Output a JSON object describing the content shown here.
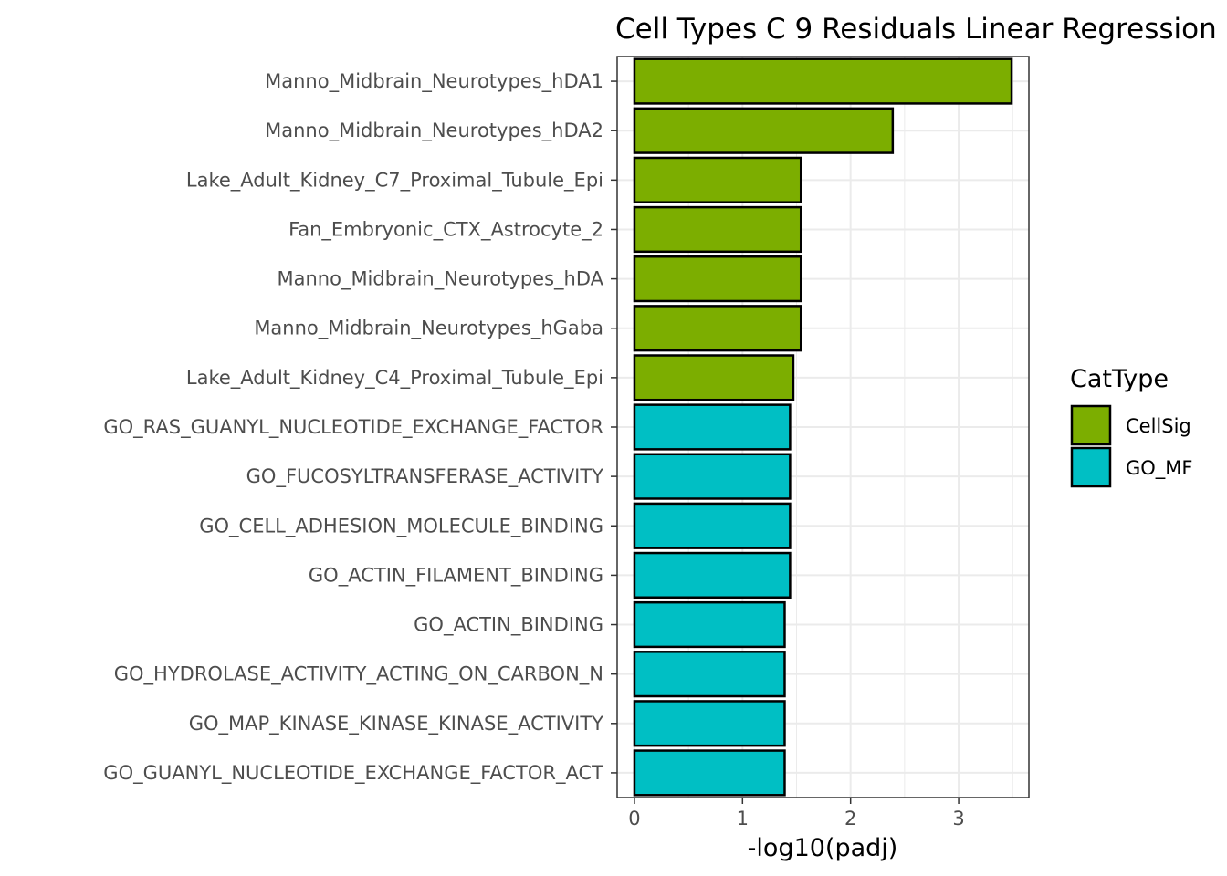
{
  "chart_data": {
    "type": "bar",
    "orientation": "horizontal",
    "title": "Cell Types C 9 Residuals Linear Regression",
    "xlabel": "-log10(padj)",
    "ylabel": "",
    "xlim": [
      -0.16,
      3.65
    ],
    "xticks": [
      "0",
      "1",
      "2",
      "3"
    ],
    "grid": true,
    "legend": {
      "title": "CatType",
      "placement": "right",
      "entries": [
        {
          "name": "CellSig",
          "color": "#7CAE00"
        },
        {
          "name": "GO_MF",
          "color": "#00BFC4"
        }
      ]
    },
    "categories": [
      "Manno_Midbrain_Neurotypes_hDA1",
      "Manno_Midbrain_Neurotypes_hDA2",
      "Lake_Adult_Kidney_C7_Proximal_Tubule_Epi",
      "Fan_Embryonic_CTX_Astrocyte_2",
      "Manno_Midbrain_Neurotypes_hDA",
      "Manno_Midbrain_Neurotypes_hGaba",
      "Lake_Adult_Kidney_C4_Proximal_Tubule_Epi",
      "GO_RAS_GUANYL_NUCLEOTIDE_EXCHANGE_FACTOR",
      "GO_FUCOSYLTRANSFERASE_ACTIVITY",
      "GO_CELL_ADHESION_MOLECULE_BINDING",
      "GO_ACTIN_FILAMENT_BINDING",
      "GO_ACTIN_BINDING",
      "GO_HYDROLASE_ACTIVITY_ACTING_ON_CARBON_N",
      "GO_MAP_KINASE_KINASE_KINASE_ACTIVITY",
      "GO_GUANYL_NUCLEOTIDE_EXCHANGE_FACTOR_ACT"
    ],
    "values": [
      3.49,
      2.39,
      1.54,
      1.54,
      1.54,
      1.54,
      1.47,
      1.44,
      1.44,
      1.44,
      1.44,
      1.39,
      1.39,
      1.39,
      1.39
    ],
    "groups": [
      "CellSig",
      "CellSig",
      "CellSig",
      "CellSig",
      "CellSig",
      "CellSig",
      "CellSig",
      "GO_MF",
      "GO_MF",
      "GO_MF",
      "GO_MF",
      "GO_MF",
      "GO_MF",
      "GO_MF",
      "GO_MF"
    ]
  }
}
